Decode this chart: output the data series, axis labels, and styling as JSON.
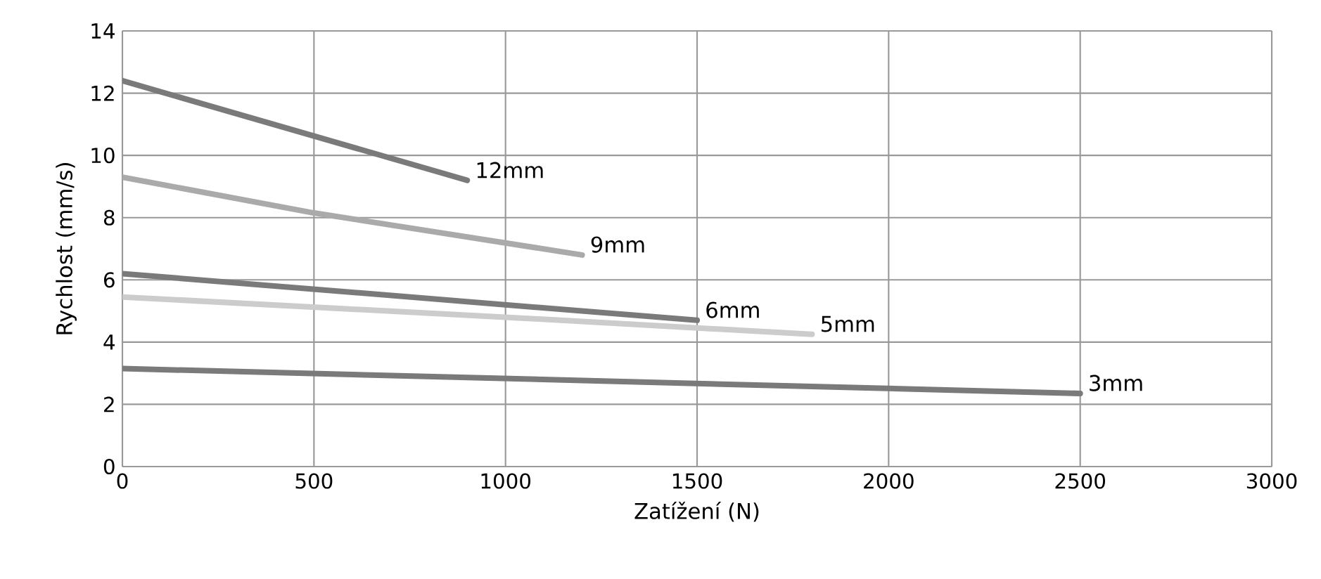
{
  "chart_data": {
    "type": "line",
    "xlabel": "Zatížení (N)",
    "ylabel": "Rychlost (mm/s)",
    "xlim": [
      0,
      3000
    ],
    "xticks": [
      0,
      500,
      1000,
      1500,
      2000,
      2500,
      3000
    ],
    "ylim": [
      0,
      14
    ],
    "yticks": [
      0,
      2,
      4,
      6,
      8,
      10,
      12,
      14
    ],
    "grid": true,
    "marker": "none",
    "line_style": "solid",
    "series": [
      {
        "name": "12mm",
        "color": "#7a7a7a",
        "x": [
          0,
          900
        ],
        "values": [
          12.4,
          9.2
        ]
      },
      {
        "name": "9mm",
        "color": "#aaaaaa",
        "x": [
          0,
          500,
          1200
        ],
        "values": [
          9.3,
          8.15,
          6.8
        ]
      },
      {
        "name": "6mm",
        "color": "#7a7a7a",
        "x": [
          0,
          1500
        ],
        "values": [
          6.2,
          4.7
        ]
      },
      {
        "name": "5mm",
        "color": "#cccccc",
        "x": [
          0,
          1000,
          1800
        ],
        "values": [
          5.45,
          4.8,
          4.25
        ]
      },
      {
        "name": "3mm",
        "color": "#7a7a7a",
        "x": [
          0,
          2500
        ],
        "values": [
          3.15,
          2.35
        ]
      }
    ]
  }
}
